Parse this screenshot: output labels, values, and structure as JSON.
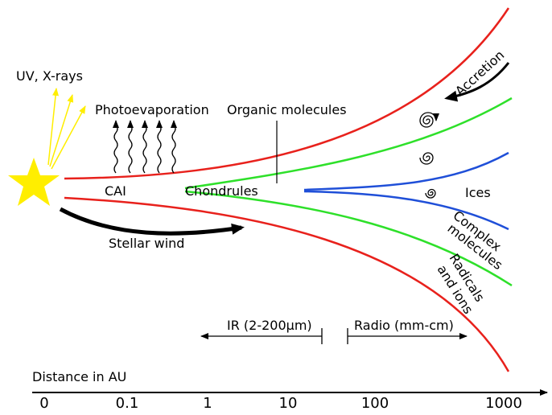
{
  "labels": {
    "uv": "UV, X-rays",
    "photoevaporation": "Photoevaporation",
    "organic": "Organic molecules",
    "accretion": "Accretion",
    "cai": "CAI",
    "chondrules": "Chondrules",
    "ices": "Ices",
    "complex": [
      "Complex",
      "molecules"
    ],
    "radicals": [
      "Radicals",
      "and ions"
    ],
    "stellar_wind": "Stellar wind",
    "ir": "IR (2-200μm)",
    "radio": "Radio (mm-cm)"
  },
  "axis": {
    "title": "Distance in AU",
    "ticks": [
      "0",
      "0.1",
      "1",
      "10",
      "100",
      "1000"
    ]
  }
}
